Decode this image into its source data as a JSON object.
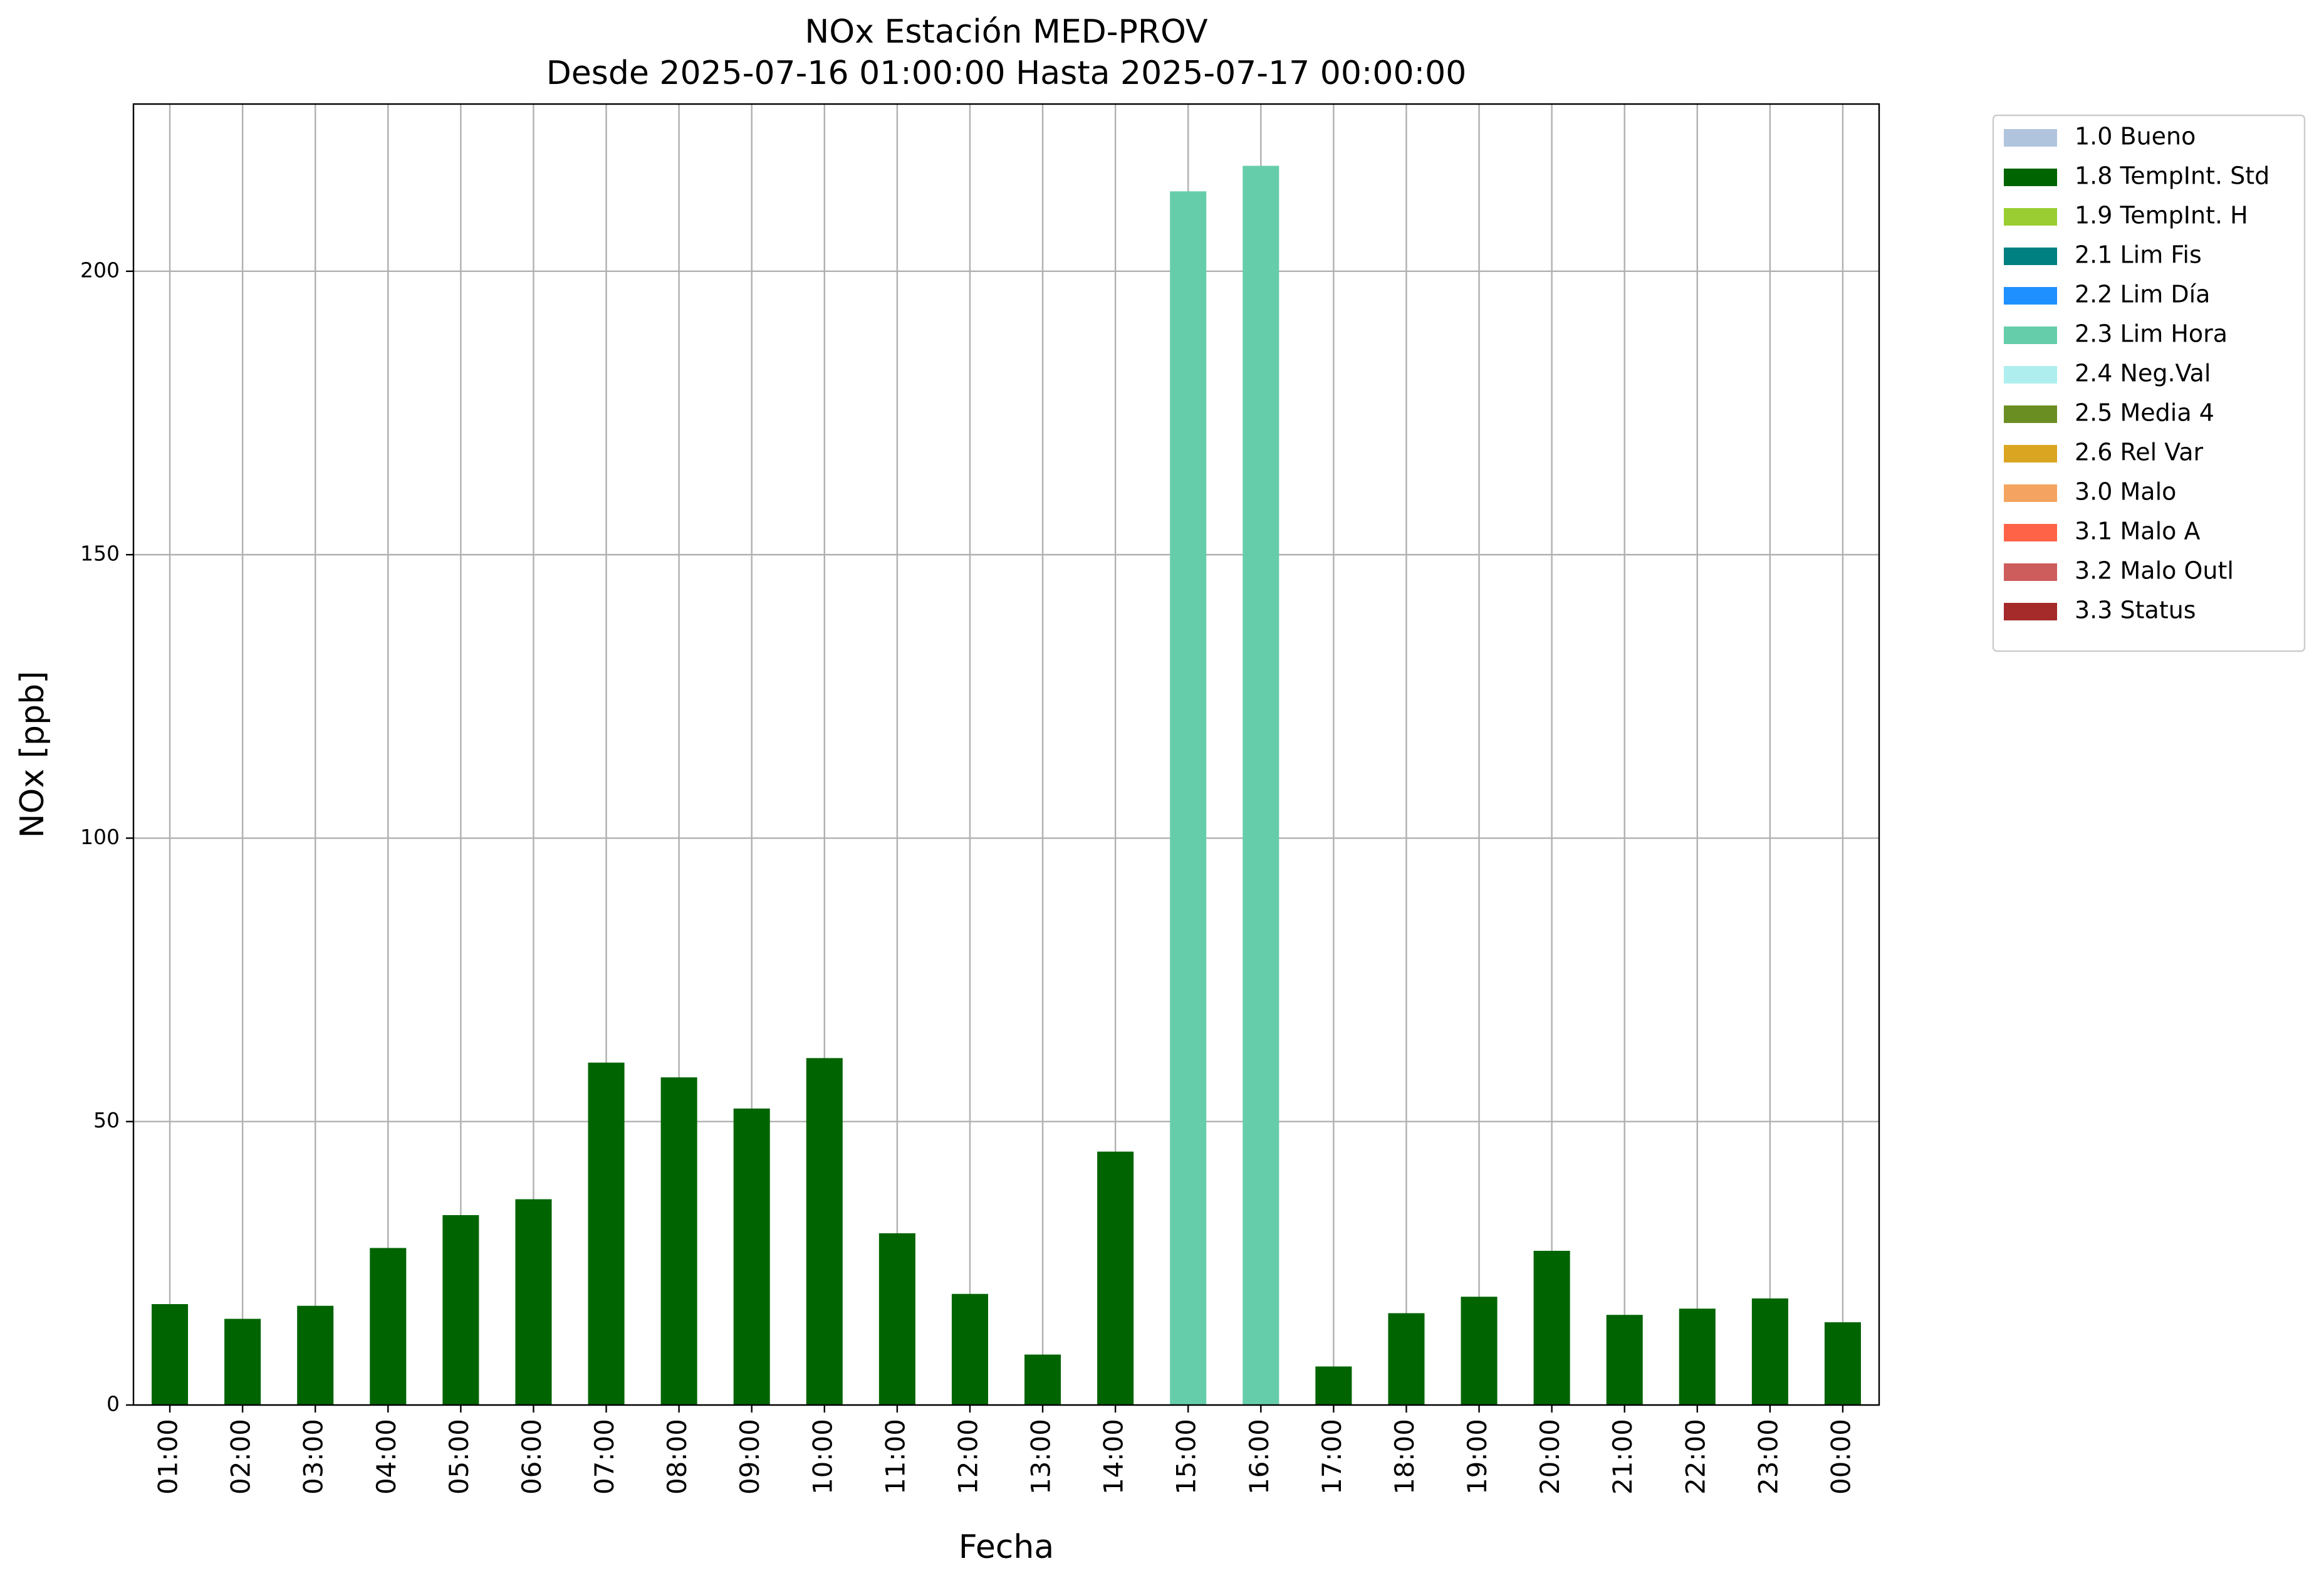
{
  "chart_data": {
    "type": "bar",
    "stacked": true,
    "title": "NOx Estación MED-PROV",
    "subtitle": "Desde 2025-07-16 01:00:00 Hasta 2025-07-17 00:00:00",
    "x_label": "Fecha",
    "y_label": "NOx [ppb]",
    "categories": [
      "01:00",
      "02:00",
      "03:00",
      "04:00",
      "05:00",
      "06:00",
      "07:00",
      "08:00",
      "09:00",
      "10:00",
      "11:00",
      "12:00",
      "13:00",
      "14:00",
      "15:00",
      "16:00",
      "17:00",
      "18:00",
      "19:00",
      "20:00",
      "21:00",
      "22:00",
      "23:00",
      "00:00"
    ],
    "series": [
      {
        "name": "1.0 Bueno",
        "color": "#b0c4de",
        "values": [
          null,
          null,
          null,
          null,
          null,
          null,
          null,
          null,
          null,
          null,
          null,
          null,
          null,
          null,
          null,
          null,
          null,
          null,
          null,
          null,
          null,
          null,
          null,
          null
        ]
      },
      {
        "name": "1.8 TempInt. Std",
        "color": "#006400",
        "values": [
          17.8,
          15.2,
          17.5,
          27.7,
          33.5,
          36.3,
          60.4,
          57.8,
          52.3,
          61.2,
          30.3,
          19.6,
          8.9,
          44.7,
          null,
          null,
          6.8,
          16.2,
          19.1,
          27.2,
          15.9,
          17.0,
          18.8,
          14.6
        ]
      },
      {
        "name": "1.9 TempInt. H",
        "color": "#9acd32",
        "values": [
          null,
          null,
          null,
          null,
          null,
          null,
          null,
          null,
          null,
          null,
          null,
          null,
          null,
          null,
          null,
          null,
          null,
          null,
          null,
          null,
          null,
          null,
          null,
          null
        ]
      },
      {
        "name": "2.1 Lim Fis",
        "color": "#008080",
        "values": [
          null,
          null,
          null,
          null,
          null,
          null,
          null,
          null,
          null,
          null,
          null,
          null,
          null,
          null,
          null,
          null,
          null,
          null,
          null,
          null,
          null,
          null,
          null,
          null
        ]
      },
      {
        "name": "2.2 Lim Día",
        "color": "#1e90ff",
        "values": [
          null,
          null,
          null,
          null,
          null,
          null,
          null,
          null,
          null,
          null,
          null,
          null,
          null,
          null,
          null,
          null,
          null,
          null,
          null,
          null,
          null,
          null,
          null,
          null
        ]
      },
      {
        "name": "2.3 Lim Hora",
        "color": "#66cdaa",
        "values": [
          null,
          null,
          null,
          null,
          null,
          null,
          null,
          null,
          null,
          null,
          null,
          null,
          null,
          null,
          214.1,
          218.6,
          null,
          null,
          null,
          null,
          null,
          null,
          null,
          null
        ]
      },
      {
        "name": "2.4 Neg.Val",
        "color": "#afeeee",
        "values": [
          null,
          null,
          null,
          null,
          null,
          null,
          null,
          null,
          null,
          null,
          null,
          null,
          null,
          null,
          null,
          null,
          null,
          null,
          null,
          null,
          null,
          null,
          null,
          null
        ]
      },
      {
        "name": "2.5 Media 4",
        "color": "#6b8e23",
        "values": [
          null,
          null,
          null,
          null,
          null,
          null,
          null,
          null,
          null,
          null,
          null,
          null,
          null,
          null,
          null,
          null,
          null,
          null,
          null,
          null,
          null,
          null,
          null,
          null
        ]
      },
      {
        "name": "2.6 Rel Var",
        "color": "#daa520",
        "values": [
          null,
          null,
          null,
          null,
          null,
          null,
          null,
          null,
          null,
          null,
          null,
          null,
          null,
          null,
          null,
          null,
          null,
          null,
          null,
          null,
          null,
          null,
          null,
          null
        ]
      },
      {
        "name": "3.0 Malo",
        "color": "#f4a460",
        "values": [
          null,
          null,
          null,
          null,
          null,
          null,
          null,
          null,
          null,
          null,
          null,
          null,
          null,
          null,
          null,
          null,
          null,
          null,
          null,
          null,
          null,
          null,
          null,
          null
        ]
      },
      {
        "name": "3.1 Malo A",
        "color": "#ff6347",
        "values": [
          null,
          null,
          null,
          null,
          null,
          null,
          null,
          null,
          null,
          null,
          null,
          null,
          null,
          null,
          null,
          null,
          null,
          null,
          null,
          null,
          null,
          null,
          null,
          null
        ]
      },
      {
        "name": "3.2 Malo Outl",
        "color": "#cd5c5c",
        "values": [
          null,
          null,
          null,
          null,
          null,
          null,
          null,
          null,
          null,
          null,
          null,
          null,
          null,
          null,
          null,
          null,
          null,
          null,
          null,
          null,
          null,
          null,
          null,
          null
        ]
      },
      {
        "name": "3.3 Status",
        "color": "#a52a2a",
        "values": [
          null,
          null,
          null,
          null,
          null,
          null,
          null,
          null,
          null,
          null,
          null,
          null,
          null,
          null,
          null,
          null,
          null,
          null,
          null,
          null,
          null,
          null,
          null,
          null
        ]
      }
    ],
    "ylim": [
      0,
      229.5
    ],
    "yticks": [
      0,
      50,
      100,
      150,
      200
    ],
    "grid": true,
    "legend": "outside-right"
  }
}
